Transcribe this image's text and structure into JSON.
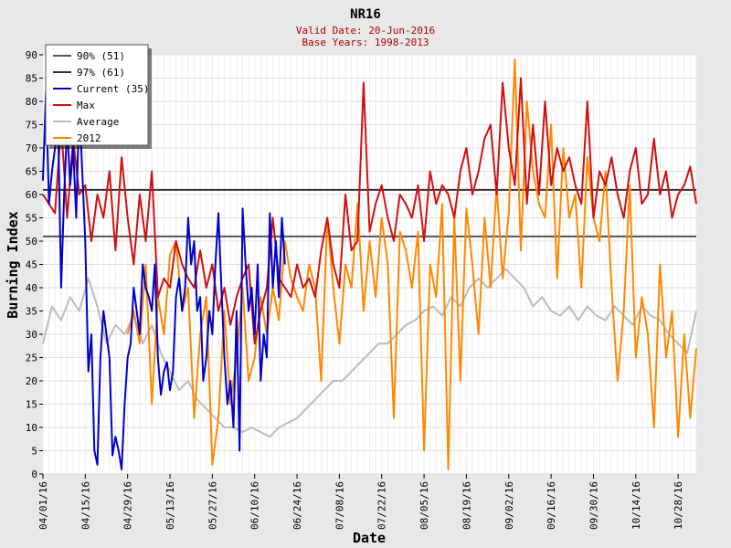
{
  "chart_data": {
    "type": "line",
    "title": "NR16",
    "subtitle_lines": [
      "Valid Date: 20-Jun-2016",
      "Base Years: 1998-2013"
    ],
    "xlabel": "Date",
    "ylabel": "Burning Index",
    "ylim": [
      0,
      90
    ],
    "yticks": [
      0,
      5,
      10,
      15,
      20,
      25,
      30,
      35,
      40,
      45,
      50,
      55,
      60,
      65,
      70,
      75,
      80,
      85,
      90
    ],
    "x_range_days": [
      0,
      216
    ],
    "xtick_labels": [
      "04/01/16",
      "04/15/16",
      "04/29/16",
      "05/13/16",
      "05/27/16",
      "06/10/16",
      "06/24/16",
      "07/08/16",
      "07/22/16",
      "08/05/16",
      "08/19/16",
      "09/02/16",
      "09/16/16",
      "09/30/16",
      "10/14/16",
      "10/28/16"
    ],
    "xtick_days": [
      0,
      14,
      28,
      42,
      56,
      70,
      84,
      98,
      112,
      126,
      140,
      154,
      168,
      182,
      196,
      210
    ],
    "grid": true,
    "legend_position": "top-left",
    "thresholds": [
      {
        "name": "90% (51)",
        "value": 51,
        "color": "#555555"
      },
      {
        "name": "97% (61)",
        "value": 61,
        "color": "#333333"
      }
    ],
    "series": [
      {
        "name": "Current (35)",
        "color": "#0000c8",
        "x": [
          0,
          1,
          2,
          3,
          4,
          5,
          6,
          7,
          8,
          9,
          10,
          11,
          12,
          13,
          14,
          15,
          16,
          17,
          18,
          19,
          20,
          21,
          22,
          23,
          24,
          25,
          26,
          27,
          28,
          29,
          30,
          31,
          32,
          33,
          34,
          35,
          36,
          37,
          38,
          39,
          40,
          41,
          42,
          43,
          44,
          45,
          46,
          47,
          48,
          49,
          50,
          51,
          52,
          53,
          54,
          55,
          56,
          57,
          58,
          59,
          60,
          61,
          62,
          63,
          64,
          65,
          66,
          67,
          68,
          69,
          70,
          71,
          72,
          73,
          74,
          75,
          76,
          77,
          78,
          79,
          80
        ],
        "y": [
          63,
          82,
          58,
          65,
          70,
          75,
          40,
          60,
          75,
          62,
          70,
          55,
          80,
          65,
          50,
          22,
          30,
          5,
          2,
          25,
          35,
          30,
          25,
          4,
          8,
          5,
          1,
          15,
          25,
          28,
          40,
          35,
          30,
          45,
          40,
          38,
          35,
          45,
          25,
          17,
          22,
          24,
          18,
          22,
          38,
          42,
          35,
          40,
          55,
          45,
          50,
          35,
          38,
          20,
          25,
          35,
          30,
          45,
          56,
          40,
          25,
          15,
          20,
          10,
          35,
          5,
          57,
          45,
          35,
          40,
          30,
          45,
          20,
          30,
          25,
          56,
          40,
          50,
          38,
          55,
          45
        ]
      },
      {
        "name": "Max",
        "color": "#d01010",
        "x": [
          0,
          2,
          4,
          6,
          8,
          10,
          12,
          14,
          16,
          18,
          20,
          22,
          24,
          26,
          28,
          30,
          32,
          34,
          36,
          38,
          40,
          42,
          44,
          46,
          48,
          50,
          52,
          54,
          56,
          58,
          60,
          62,
          64,
          66,
          68,
          70,
          72,
          74,
          76,
          78,
          80,
          82,
          84,
          86,
          88,
          90,
          92,
          94,
          96,
          98,
          100,
          102,
          104,
          106,
          108,
          110,
          112,
          114,
          116,
          118,
          120,
          122,
          124,
          126,
          128,
          130,
          132,
          134,
          136,
          138,
          140,
          142,
          144,
          146,
          148,
          150,
          152,
          154,
          156,
          158,
          160,
          162,
          164,
          166,
          168,
          170,
          172,
          174,
          176,
          178,
          180,
          182,
          184,
          186,
          188,
          190,
          192,
          194,
          196,
          198,
          200,
          202,
          204,
          206,
          208,
          210,
          212,
          214,
          216
        ],
        "y": [
          60,
          58,
          56,
          75,
          55,
          72,
          60,
          62,
          50,
          60,
          55,
          65,
          48,
          68,
          55,
          45,
          60,
          50,
          65,
          38,
          42,
          40,
          50,
          45,
          42,
          40,
          48,
          40,
          45,
          35,
          40,
          32,
          38,
          42,
          45,
          28,
          35,
          40,
          55,
          42,
          40,
          38,
          45,
          40,
          42,
          38,
          48,
          55,
          45,
          40,
          60,
          48,
          50,
          84,
          52,
          58,
          62,
          55,
          50,
          60,
          58,
          55,
          62,
          50,
          65,
          58,
          62,
          60,
          55,
          65,
          70,
          60,
          65,
          72,
          75,
          60,
          84,
          70,
          62,
          85,
          58,
          75,
          60,
          80,
          62,
          70,
          65,
          68,
          62,
          58,
          80,
          55,
          65,
          62,
          68,
          60,
          55,
          65,
          70,
          58,
          60,
          72,
          60,
          65,
          55,
          60,
          62,
          66,
          58
        ]
      },
      {
        "name": "Average",
        "color": "#bcbcbc",
        "x": [
          0,
          3,
          6,
          9,
          12,
          15,
          18,
          21,
          24,
          27,
          30,
          33,
          36,
          39,
          42,
          45,
          48,
          51,
          54,
          57,
          60,
          63,
          66,
          69,
          72,
          75,
          78,
          81,
          84,
          87,
          90,
          93,
          96,
          99,
          102,
          105,
          108,
          111,
          114,
          117,
          120,
          123,
          126,
          129,
          132,
          135,
          138,
          141,
          144,
          147,
          150,
          153,
          156,
          159,
          162,
          165,
          168,
          171,
          174,
          177,
          180,
          183,
          186,
          189,
          192,
          195,
          198,
          201,
          204,
          207,
          210,
          213,
          216
        ],
        "y": [
          28,
          36,
          33,
          38,
          35,
          42,
          36,
          28,
          32,
          30,
          34,
          28,
          32,
          26,
          22,
          18,
          20,
          16,
          14,
          12,
          10,
          10,
          9,
          10,
          9,
          8,
          10,
          11,
          12,
          14,
          16,
          18,
          20,
          20,
          22,
          24,
          26,
          28,
          28,
          30,
          32,
          33,
          35,
          36,
          34,
          38,
          36,
          40,
          42,
          40,
          42,
          44,
          42,
          40,
          36,
          38,
          35,
          34,
          36,
          33,
          36,
          34,
          33,
          36,
          34,
          32,
          36,
          34,
          33,
          30,
          28,
          26,
          35
        ]
      },
      {
        "name": "2012",
        "color": "#ff8800",
        "x": [
          28,
          30,
          32,
          34,
          36,
          38,
          40,
          42,
          44,
          46,
          48,
          50,
          52,
          54,
          56,
          58,
          60,
          62,
          64,
          66,
          68,
          70,
          72,
          74,
          76,
          78,
          80,
          82,
          84,
          86,
          88,
          90,
          92,
          94,
          96,
          98,
          100,
          102,
          104,
          106,
          108,
          110,
          112,
          114,
          116,
          118,
          120,
          122,
          124,
          126,
          128,
          130,
          132,
          134,
          136,
          138,
          140,
          142,
          144,
          146,
          148,
          150,
          152,
          154,
          156,
          158,
          160,
          162,
          164,
          166,
          168,
          170,
          172,
          174,
          176,
          178,
          180,
          182,
          184,
          186,
          188,
          190,
          192,
          194,
          196,
          198,
          200,
          202,
          204,
          206,
          208,
          210,
          212,
          214,
          216
        ],
        "y": [
          30,
          35,
          28,
          45,
          15,
          38,
          30,
          47,
          50,
          35,
          40,
          12,
          30,
          38,
          2,
          12,
          35,
          15,
          25,
          40,
          20,
          25,
          38,
          30,
          40,
          33,
          50,
          42,
          38,
          35,
          45,
          40,
          20,
          55,
          40,
          28,
          45,
          40,
          58,
          35,
          50,
          38,
          55,
          45,
          12,
          52,
          48,
          40,
          52,
          5,
          45,
          38,
          58,
          1,
          55,
          20,
          57,
          45,
          30,
          55,
          40,
          62,
          42,
          56,
          89,
          48,
          80,
          65,
          58,
          55,
          75,
          42,
          70,
          55,
          60,
          40,
          68,
          55,
          50,
          65,
          40,
          20,
          35,
          62,
          25,
          38,
          30,
          10,
          45,
          25,
          35,
          8,
          30,
          12,
          27
        ]
      }
    ]
  }
}
